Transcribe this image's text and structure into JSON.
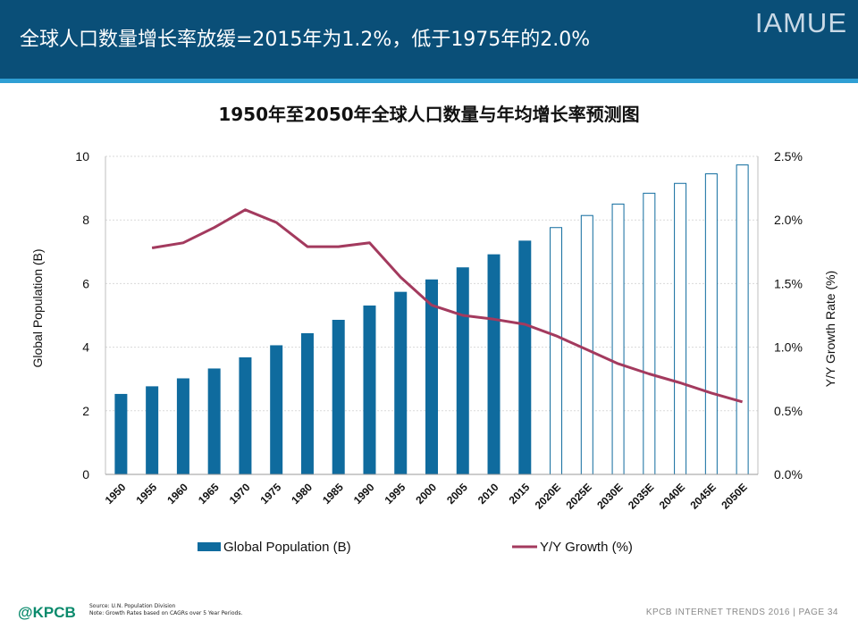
{
  "header": {
    "title": "全球人口数量增长率放缓=2015年为1.2%，低于1975年的2.0%",
    "brand": "IAMUE"
  },
  "chart_data": {
    "type": "bar",
    "title": "1950年至2050年全球人口数量与年均增长率预测图",
    "categories": [
      "1950",
      "1955",
      "1960",
      "1965",
      "1970",
      "1975",
      "1980",
      "1985",
      "1990",
      "1995",
      "2000",
      "2005",
      "2010",
      "2015",
      "2020E",
      "2025E",
      "2030E",
      "2035E",
      "2040E",
      "2045E",
      "2050E"
    ],
    "projected_from_index": 14,
    "ylabel": "Global Population (B)",
    "ylabel_right": "Y/Y Growth Rate (%)",
    "ylim": [
      0,
      10
    ],
    "y_ticks": [
      0,
      2,
      4,
      6,
      8,
      10
    ],
    "ylim_right": [
      0,
      2.5
    ],
    "y_ticks_right": [
      "0.0%",
      "0.5%",
      "1.0%",
      "1.5%",
      "2.0%",
      "2.5%"
    ],
    "grid": true,
    "legend_position": "bottom",
    "series": [
      {
        "name": "Global Population (B)",
        "type": "bar",
        "axis": "left",
        "color": "#0f6b9e",
        "values": [
          2.53,
          2.77,
          3.02,
          3.33,
          3.68,
          4.06,
          4.44,
          4.86,
          5.31,
          5.74,
          6.13,
          6.51,
          6.92,
          7.35,
          7.76,
          8.14,
          8.5,
          8.84,
          9.15,
          9.45,
          9.73
        ]
      },
      {
        "name": "Y/Y Growth (%)",
        "type": "line",
        "axis": "right",
        "color": "#a33a5e",
        "values": [
          null,
          1.78,
          1.82,
          1.94,
          2.08,
          1.98,
          1.79,
          1.79,
          1.82,
          1.55,
          1.33,
          1.25,
          1.22,
          1.18,
          1.09,
          0.98,
          0.87,
          0.79,
          0.72,
          0.64,
          0.57
        ]
      }
    ]
  },
  "footer": {
    "logo": "@KPCB",
    "source_line1": "Source: U.N. Population Division",
    "source_line2": "Note: Growth Rates based on CAGRs over 5 Year Periods.",
    "right_text": "KPCB INTERNET TRENDS 2016  |  PAGE 34"
  }
}
